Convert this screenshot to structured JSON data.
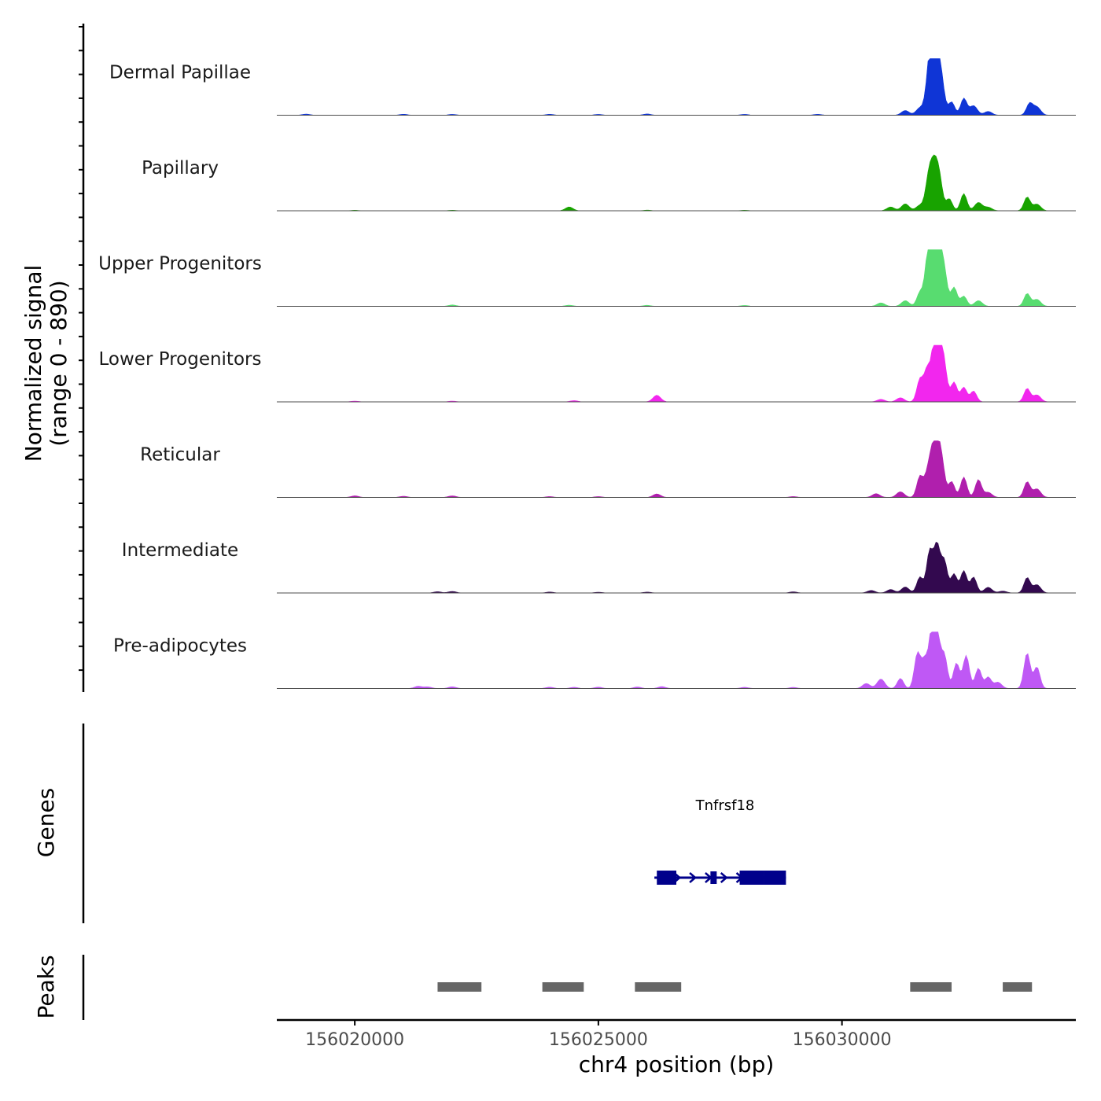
{
  "chart_data": {
    "type": "area",
    "title": "",
    "ylabel_line1": "Normalized signal",
    "ylabel_line2": "(range 0 - 890)",
    "ylim": [
      0,
      890
    ],
    "xlabel": "chr4 position (bp)",
    "xlim": [
      156018400,
      156034800
    ],
    "x_ticks": [
      {
        "value": 156020000,
        "label": "156020000"
      },
      {
        "value": 156025000,
        "label": "156025000"
      },
      {
        "value": 156030000,
        "label": "156030000"
      }
    ],
    "tracks": [
      {
        "name": "Dermal Papillae",
        "color": "#0f35d6",
        "peaks": [
          [
            156031300,
            75
          ],
          [
            156031600,
            115
          ],
          [
            156031750,
            155
          ],
          [
            156031800,
            575
          ],
          [
            156031880,
            890
          ],
          [
            156031950,
            800
          ],
          [
            156032050,
            440
          ],
          [
            156032250,
            210
          ],
          [
            156032500,
            265
          ],
          [
            156032700,
            150
          ],
          [
            156033000,
            60
          ],
          [
            156033850,
            180
          ],
          [
            156034000,
            130
          ],
          [
            156019000,
            18
          ],
          [
            156021000,
            16
          ],
          [
            156022000,
            14
          ],
          [
            156024000,
            15
          ],
          [
            156025000,
            14
          ],
          [
            156026000,
            20
          ],
          [
            156028000,
            14
          ],
          [
            156029500,
            15
          ]
        ]
      },
      {
        "name": "Papillary",
        "color": "#18a300",
        "peaks": [
          [
            156024400,
            60
          ],
          [
            156031000,
            60
          ],
          [
            156031300,
            110
          ],
          [
            156031600,
            85
          ],
          [
            156031750,
            155
          ],
          [
            156031800,
            450
          ],
          [
            156031900,
            600
          ],
          [
            156032000,
            480
          ],
          [
            156032200,
            190
          ],
          [
            156032500,
            270
          ],
          [
            156032800,
            130
          ],
          [
            156033000,
            55
          ],
          [
            156033800,
            215
          ],
          [
            156034000,
            105
          ],
          [
            156020000,
            8
          ],
          [
            156022000,
            8
          ],
          [
            156026000,
            10
          ],
          [
            156028000,
            8
          ]
        ]
      },
      {
        "name": "Upper Progenitors",
        "color": "#58dc70",
        "peaks": [
          [
            156022000,
            22
          ],
          [
            156024400,
            18
          ],
          [
            156026000,
            16
          ],
          [
            156028000,
            14
          ],
          [
            156030800,
            55
          ],
          [
            156031300,
            90
          ],
          [
            156031600,
            215
          ],
          [
            156031750,
            410
          ],
          [
            156031800,
            580
          ],
          [
            156031900,
            810
          ],
          [
            156032000,
            680
          ],
          [
            156032100,
            490
          ],
          [
            156032300,
            300
          ],
          [
            156032500,
            160
          ],
          [
            156032800,
            90
          ],
          [
            156033800,
            200
          ],
          [
            156034000,
            110
          ]
        ]
      },
      {
        "name": "Lower Progenitors",
        "color": "#f226ee",
        "peaks": [
          [
            156026200,
            105
          ],
          [
            156024500,
            20
          ],
          [
            156020000,
            12
          ],
          [
            156022000,
            12
          ],
          [
            156030800,
            40
          ],
          [
            156031200,
            65
          ],
          [
            156031600,
            350
          ],
          [
            156031750,
            500
          ],
          [
            156031900,
            870
          ],
          [
            156032000,
            760
          ],
          [
            156032100,
            490
          ],
          [
            156032300,
            310
          ],
          [
            156032500,
            230
          ],
          [
            156032700,
            170
          ],
          [
            156033800,
            210
          ],
          [
            156034000,
            110
          ]
        ]
      },
      {
        "name": "Reticular",
        "color": "#b01fad",
        "peaks": [
          [
            156020000,
            25
          ],
          [
            156021000,
            18
          ],
          [
            156022000,
            25
          ],
          [
            156026200,
            55
          ],
          [
            156025000,
            14
          ],
          [
            156024000,
            14
          ],
          [
            156029000,
            14
          ],
          [
            156030700,
            60
          ],
          [
            156031200,
            90
          ],
          [
            156031600,
            330
          ],
          [
            156031750,
            300
          ],
          [
            156031850,
            560
          ],
          [
            156031950,
            700
          ],
          [
            156032050,
            500
          ],
          [
            156032250,
            250
          ],
          [
            156032500,
            320
          ],
          [
            156032800,
            280
          ],
          [
            156033000,
            80
          ],
          [
            156033800,
            245
          ],
          [
            156034000,
            135
          ]
        ]
      },
      {
        "name": "Intermediate",
        "color": "#33094f",
        "peaks": [
          [
            156021700,
            20
          ],
          [
            156022000,
            25
          ],
          [
            156024000,
            15
          ],
          [
            156025000,
            12
          ],
          [
            156026000,
            14
          ],
          [
            156029000,
            18
          ],
          [
            156030600,
            40
          ],
          [
            156031000,
            55
          ],
          [
            156031300,
            95
          ],
          [
            156031600,
            250
          ],
          [
            156031800,
            650
          ],
          [
            156031950,
            740
          ],
          [
            156032100,
            500
          ],
          [
            156032300,
            300
          ],
          [
            156032500,
            350
          ],
          [
            156032700,
            250
          ],
          [
            156033000,
            90
          ],
          [
            156033300,
            30
          ],
          [
            156033800,
            240
          ],
          [
            156034000,
            130
          ]
        ]
      },
      {
        "name": "Pre-adipocytes",
        "color": "#bf58f5",
        "peaks": [
          [
            156021300,
            35
          ],
          [
            156021500,
            25
          ],
          [
            156022000,
            28
          ],
          [
            156024000,
            22
          ],
          [
            156024500,
            20
          ],
          [
            156025000,
            22
          ],
          [
            156025800,
            25
          ],
          [
            156026300,
            30
          ],
          [
            156028000,
            20
          ],
          [
            156029000,
            18
          ],
          [
            156030500,
            80
          ],
          [
            156030800,
            150
          ],
          [
            156031200,
            160
          ],
          [
            156031550,
            550
          ],
          [
            156031700,
            430
          ],
          [
            156031850,
            870
          ],
          [
            156031950,
            800
          ],
          [
            156032100,
            520
          ],
          [
            156032350,
            400
          ],
          [
            156032550,
            520
          ],
          [
            156032800,
            320
          ],
          [
            156033000,
            180
          ],
          [
            156033200,
            100
          ],
          [
            156033800,
            560
          ],
          [
            156034000,
            340
          ]
        ]
      }
    ],
    "genes_track": {
      "label": "Genes",
      "gene_name": "Tnfrsf18",
      "color": "#00008b",
      "start": 156026150,
      "end": 156028850,
      "exons": [
        [
          156026200,
          156026600
        ],
        [
          156027300,
          156027400
        ],
        [
          156027900,
          156028400
        ],
        [
          156028400,
          156028850
        ]
      ],
      "strand": "+"
    },
    "peaks_track": {
      "label": "Peaks",
      "color": "#666666",
      "regions": [
        [
          156021700,
          156022600
        ],
        [
          156023850,
          156024700
        ],
        [
          156025750,
          156026700
        ],
        [
          156031400,
          156032250
        ],
        [
          156033300,
          156033900
        ]
      ]
    }
  }
}
